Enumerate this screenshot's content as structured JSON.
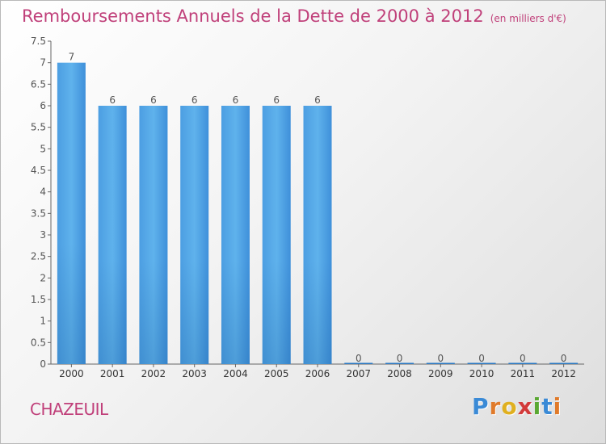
{
  "header": {
    "title": "Remboursements Annuels de la Dette de 2000 à 2012",
    "unit": "(en milliers d'€)"
  },
  "footer": {
    "commune": "CHAZEUIL",
    "brand": "Proxiti",
    "brand_letters": [
      "P",
      "r",
      "o",
      "x",
      "i",
      "t",
      "i"
    ],
    "brand_colors": [
      "#3a8ad6",
      "#e07a2a",
      "#e0b020",
      "#d23a3a",
      "#5aa832",
      "#3a8ad6",
      "#e07a2a"
    ]
  },
  "chart_data": {
    "type": "bar",
    "title": "Remboursements Annuels de la Dette de 2000 à 2012",
    "unit": "(en milliers d'€)",
    "categories": [
      "2000",
      "2001",
      "2002",
      "2003",
      "2004",
      "2005",
      "2006",
      "2007",
      "2008",
      "2009",
      "2010",
      "2011",
      "2012"
    ],
    "values": [
      7,
      6,
      6,
      6,
      6,
      6,
      6,
      0,
      0,
      0,
      0,
      0,
      0
    ],
    "value_labels": [
      "7",
      "6",
      "6",
      "6",
      "6",
      "6",
      "6",
      "0",
      "0",
      "0",
      "0",
      "0",
      "0"
    ],
    "ylim": [
      0,
      7.5
    ],
    "yticks": [
      "0",
      "0.5",
      "1",
      "1.5",
      "2",
      "2.5",
      "3",
      "3.5",
      "4",
      "4.5",
      "5",
      "5.5",
      "6",
      "6.5",
      "7",
      "7.5"
    ],
    "ytick_values": [
      0,
      0.5,
      1,
      1.5,
      2,
      2.5,
      3,
      3.5,
      4,
      4.5,
      5,
      5.5,
      6,
      6.5,
      7,
      7.5
    ],
    "grid": false,
    "legend": "none",
    "bar_color": "#3d8fd8",
    "bar_color_light": "#5aaee9",
    "bar_color_dark": "#2a78c2"
  }
}
